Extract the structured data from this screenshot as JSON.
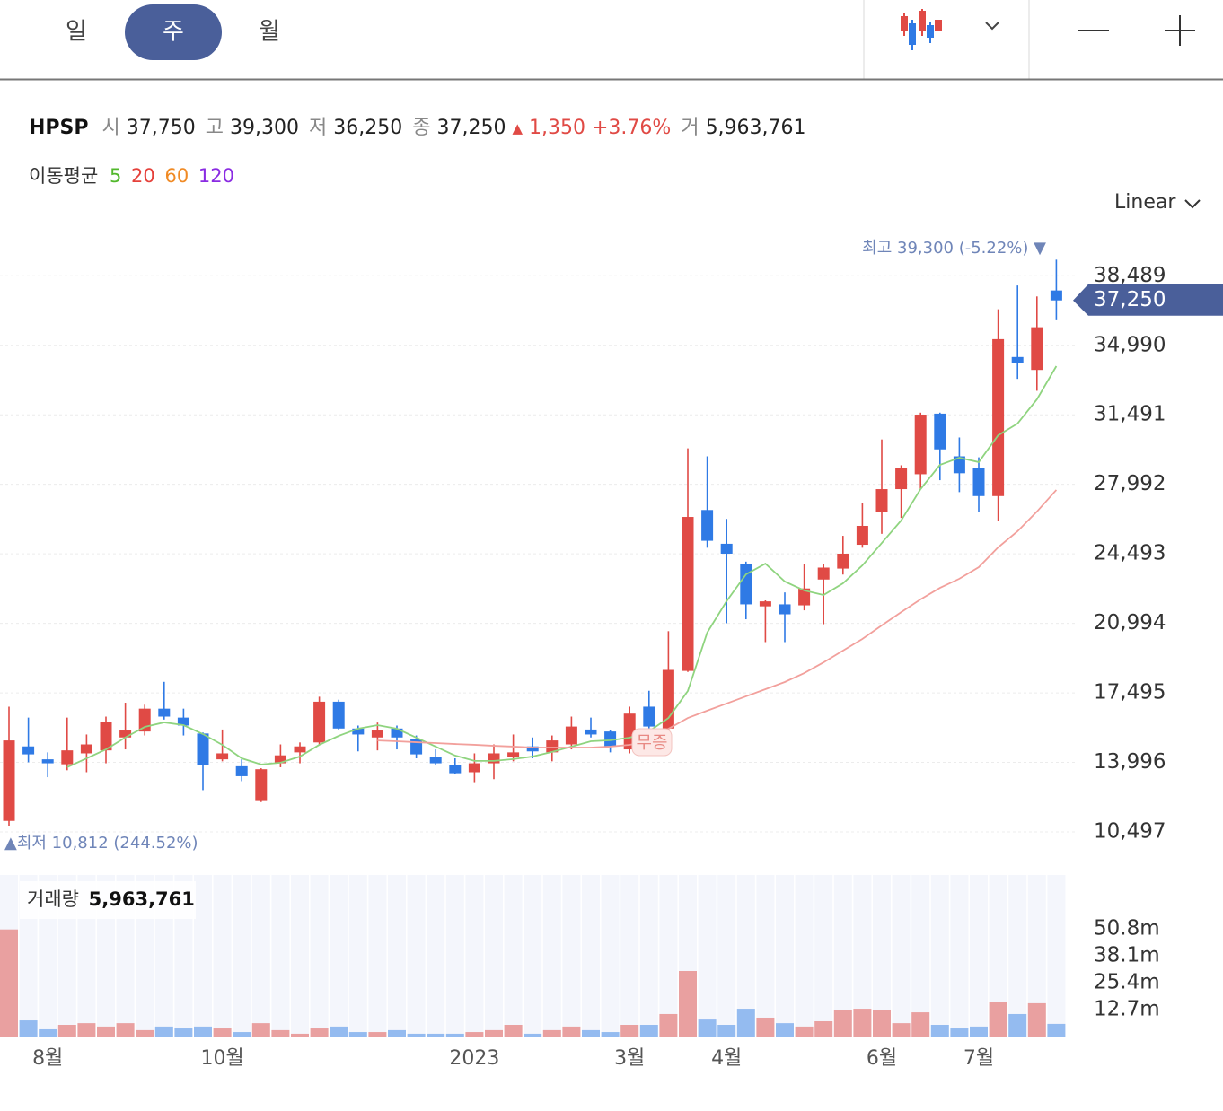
{
  "header": {
    "tabs": [
      "일",
      "주",
      "월"
    ],
    "selected": 1,
    "scale": "Linear"
  },
  "info": {
    "symbol": "HPSP",
    "open_label": "시",
    "open": "37,750",
    "high_label": "고",
    "high": "39,300",
    "low_label": "저",
    "low": "36,250",
    "close_label": "종",
    "close": "37,250",
    "change_arrow": "▲",
    "change": "1,350",
    "change_pct": "+3.76%",
    "volume_label": "거",
    "volume": "5,963,761"
  },
  "ma_legend": {
    "label": "이동평균",
    "items": [
      {
        "name": "5",
        "color": "#52b82c"
      },
      {
        "name": "20",
        "color": "#e5413b"
      },
      {
        "name": "60",
        "color": "#f08a24"
      },
      {
        "name": "120",
        "color": "#8a2be2"
      }
    ]
  },
  "annotations": {
    "high": "최고 39,300 (-5.22%) ▼",
    "low": "▲최저 10,812 (244.52%)",
    "event": "무증",
    "last": "37,250"
  },
  "chart_data": [
    {
      "type": "candlestick",
      "up_color": "#e04a45",
      "down_color": "#2f7ae5",
      "grid": true,
      "categories": [
        null,
        null,
        "8월",
        null,
        null,
        null,
        null,
        null,
        null,
        null,
        null,
        "10월",
        null,
        null,
        null,
        null,
        null,
        null,
        null,
        null,
        null,
        null,
        null,
        null,
        "2023",
        null,
        null,
        null,
        null,
        null,
        null,
        null,
        "3월",
        null,
        null,
        null,
        null,
        "4월",
        null,
        null,
        null,
        null,
        null,
        null,
        null,
        "6월",
        null,
        null,
        null,
        null,
        "7월",
        null,
        null,
        null,
        null
      ],
      "open": [
        11050,
        14800,
        14150,
        13900,
        14450,
        14600,
        15250,
        15550,
        16700,
        16250,
        15450,
        14150,
        13800,
        12050,
        13950,
        14500,
        15000,
        17050,
        15700,
        15250,
        15700,
        15150,
        14250,
        13850,
        13500,
        13950,
        14250,
        14800,
        14500,
        14900,
        15650,
        15550,
        14650,
        16800,
        15700,
        18600,
        26700,
        25000,
        24000,
        21850,
        21950,
        21900,
        23200,
        23750,
        24950,
        26600,
        27750,
        28500,
        31550,
        29400,
        28800,
        27400,
        34400,
        33750,
        37750
      ],
      "high": [
        16800,
        16250,
        14500,
        16250,
        15400,
        16300,
        17000,
        16900,
        18050,
        16700,
        15500,
        15650,
        14150,
        13700,
        14900,
        15000,
        17300,
        17150,
        15850,
        16000,
        15850,
        15350,
        14650,
        14200,
        14450,
        14900,
        15400,
        15250,
        15350,
        16300,
        16250,
        15600,
        16800,
        17600,
        20600,
        29800,
        29400,
        26250,
        24100,
        22150,
        22550,
        24000,
        24000,
        25400,
        27050,
        30250,
        28950,
        31600,
        31600,
        30350,
        29350,
        36800,
        38000,
        37450,
        39300
      ],
      "low": [
        10812,
        14000,
        13250,
        13600,
        13500,
        13950,
        14650,
        15350,
        16150,
        15350,
        12600,
        14050,
        13050,
        12000,
        13750,
        13950,
        14900,
        15650,
        14550,
        14600,
        14650,
        14200,
        13850,
        13400,
        13000,
        13150,
        14050,
        14200,
        14050,
        14650,
        15250,
        14500,
        14450,
        15700,
        15550,
        18550,
        24800,
        21000,
        21200,
        20050,
        20050,
        21650,
        20950,
        23450,
        24800,
        25500,
        26300,
        27750,
        28200,
        27600,
        26600,
        26150,
        33300,
        32700,
        36250
      ],
      "close": [
        15100,
        14400,
        13950,
        14600,
        14900,
        16050,
        15600,
        16700,
        16300,
        15850,
        13850,
        14450,
        13300,
        13650,
        14350,
        14800,
        17050,
        15700,
        15400,
        15600,
        15250,
        14400,
        13950,
        13450,
        13950,
        14450,
        14500,
        14550,
        15100,
        15800,
        15400,
        14800,
        16450,
        15800,
        18650,
        26350,
        25150,
        24500,
        21950,
        22100,
        21450,
        22750,
        23800,
        24500,
        25900,
        27750,
        28800,
        31500,
        29750,
        28550,
        27400,
        35300,
        34100,
        35900,
        37250
      ],
      "series": [
        {
          "color": "#8fd47f",
          "values": [
            null,
            null,
            null,
            13750,
            14200,
            14650,
            15250,
            15780,
            16010,
            15870,
            15420,
            14880,
            14200,
            13890,
            13980,
            14290,
            14880,
            15330,
            15690,
            15870,
            15690,
            15240,
            14790,
            14340,
            14070,
            14070,
            14160,
            14290,
            14520,
            14790,
            15060,
            15110,
            15240,
            15560,
            16230,
            17590,
            20530,
            22110,
            23460,
            24000,
            23100,
            22650,
            22420,
            23010,
            23910,
            25040,
            26170,
            27750,
            28970,
            29330,
            29110,
            30460,
            31050,
            32270,
            33940
          ]
        },
        {
          "color": "#f2a09c",
          "values": [
            null,
            null,
            null,
            null,
            null,
            null,
            null,
            null,
            null,
            null,
            null,
            null,
            null,
            null,
            null,
            null,
            null,
            null,
            null,
            15100,
            15060,
            15010,
            14970,
            14920,
            14880,
            14830,
            14790,
            14740,
            14740,
            14740,
            14740,
            14790,
            14880,
            15060,
            15690,
            16230,
            16600,
            16960,
            17320,
            17680,
            18040,
            18490,
            19030,
            19620,
            20210,
            20890,
            21560,
            22200,
            22780,
            23240,
            23820,
            24820,
            25630,
            26620,
            27710
          ]
        }
      ],
      "ylim": [
        9006,
        41077
      ],
      "yticks": [
        {
          "value": 10497,
          "label": "10,497"
        },
        {
          "value": 13996,
          "label": "13,996"
        },
        {
          "value": 17495,
          "label": "17,495"
        },
        {
          "value": 20994,
          "label": "20,994"
        },
        {
          "value": 24493,
          "label": "24,493"
        },
        {
          "value": 27992,
          "label": "27,992"
        },
        {
          "value": 31491,
          "label": "31,491"
        },
        {
          "value": 34990,
          "label": "34,990"
        },
        {
          "value": 38489,
          "label": "38,489"
        }
      ]
    },
    {
      "type": "bar",
      "title": "거래량",
      "title_value": "5,963,761",
      "up_color": "#e9a0a0",
      "down_color": "#94bbf0",
      "values": [
        50500000,
        7600000,
        3400000,
        5500000,
        6300000,
        4700000,
        6300000,
        3000000,
        4700000,
        3800000,
        4700000,
        3800000,
        2100000,
        6300000,
        3000000,
        1300000,
        3800000,
        4700000,
        2100000,
        2100000,
        3000000,
        1300000,
        1300000,
        1300000,
        2100000,
        3000000,
        5500000,
        1300000,
        3000000,
        4700000,
        3000000,
        2100000,
        5500000,
        5500000,
        10600000,
        30900000,
        8000000,
        5500000,
        13100000,
        8900000,
        6300000,
        4700000,
        7200000,
        12300000,
        13100000,
        12300000,
        6300000,
        11400000,
        5500000,
        3800000,
        4700000,
        16500000,
        10600000,
        15700000,
        5963761
      ],
      "ylim": [
        0,
        76200000
      ],
      "yticks": [
        {
          "value": 12700000,
          "label": "12.7m"
        },
        {
          "value": 25400000,
          "label": "25.4m"
        },
        {
          "value": 38100000,
          "label": "38.1m"
        },
        {
          "value": 50800000,
          "label": "50.8m"
        }
      ]
    }
  ]
}
